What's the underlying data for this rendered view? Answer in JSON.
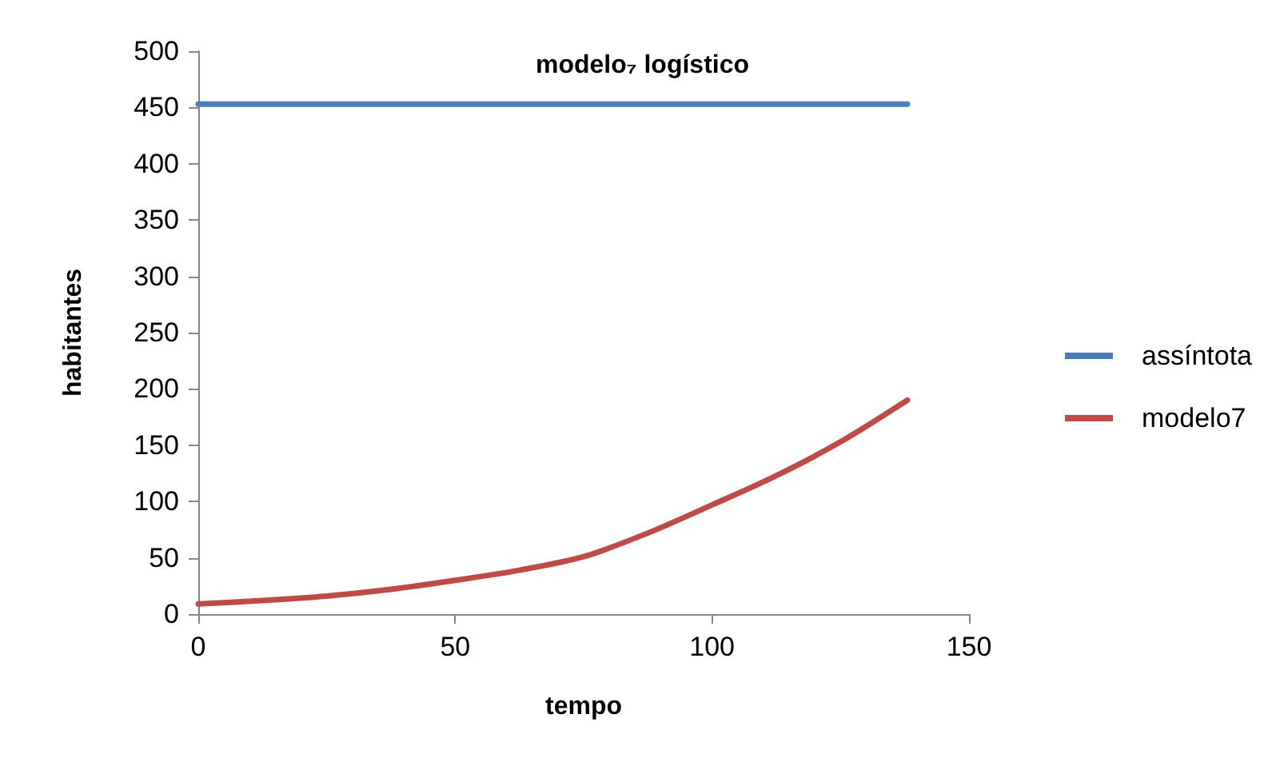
{
  "chart_data": {
    "type": "line",
    "title": "modelo₇ logístico",
    "xlabel": "tempo",
    "ylabel": "habitantes",
    "xlim": [
      0,
      150
    ],
    "xticks": [
      0,
      50,
      100,
      150
    ],
    "ylim": [
      0,
      500
    ],
    "yticks": [
      0,
      50,
      100,
      150,
      200,
      250,
      300,
      350,
      400,
      450,
      500
    ],
    "grid": false,
    "legend": "right",
    "marker": "none",
    "line_style": "solid",
    "series": [
      {
        "name": "assíntota",
        "color": "#4a7ebb",
        "x": [
          0,
          138
        ],
        "values": [
          453,
          453
        ]
      },
      {
        "name": "modelo7",
        "color": "#be4b48",
        "x": [
          0,
          12.5,
          25,
          37.5,
          50,
          62.5,
          75,
          87.5,
          100,
          112.5,
          125,
          138
        ],
        "values": [
          9,
          12,
          16,
          22,
          30,
          39,
          51,
          72,
          97,
          123,
          153,
          190
        ]
      }
    ]
  }
}
